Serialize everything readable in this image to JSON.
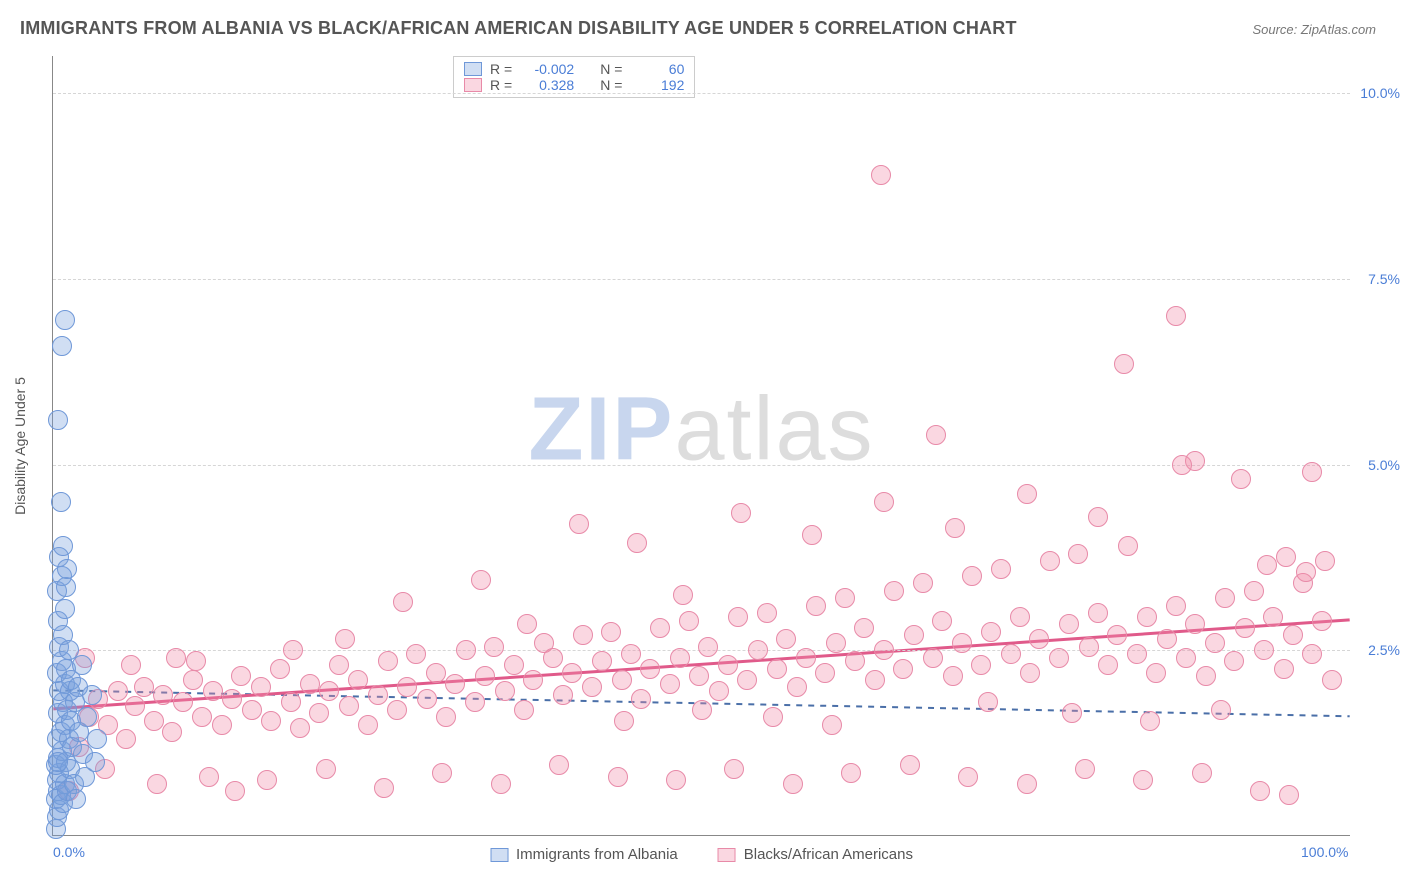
{
  "title": "IMMIGRANTS FROM ALBANIA VS BLACK/AFRICAN AMERICAN DISABILITY AGE UNDER 5 CORRELATION CHART",
  "source": "Source: ZipAtlas.com",
  "y_axis_title": "Disability Age Under 5",
  "watermark": {
    "part1": "ZIP",
    "part2": "atlas"
  },
  "colors": {
    "series1_fill": "rgba(120,160,220,0.35)",
    "series1_stroke": "#6f98d8",
    "series2_fill": "rgba(240,140,170,0.35)",
    "series2_stroke": "#e88aa8",
    "trend1": "#4a6fa8",
    "trend2": "#e05a8a",
    "tick_text": "#4a7dd6",
    "grid": "#d6d6d6",
    "axis": "#888888",
    "title_text": "#555555"
  },
  "xlim": [
    0,
    100
  ],
  "ylim": [
    0,
    10.5
  ],
  "x_ticks": [
    {
      "v": 0,
      "label": "0.0%"
    },
    {
      "v": 100,
      "label": "100.0%"
    }
  ],
  "y_ticks": [
    {
      "v": 2.5,
      "label": "2.5%"
    },
    {
      "v": 5.0,
      "label": "5.0%"
    },
    {
      "v": 7.5,
      "label": "7.5%"
    },
    {
      "v": 10.0,
      "label": "10.0%"
    }
  ],
  "legend_top": {
    "rows": [
      {
        "swatch": "series1",
        "r_label": "R =",
        "r_value": "-0.002",
        "n_label": "N =",
        "n_value": "60"
      },
      {
        "swatch": "series2",
        "r_label": "R =",
        "r_value": "0.328",
        "n_label": "N =",
        "n_value": "192"
      }
    ]
  },
  "legend_bottom": [
    {
      "swatch": "series1",
      "label": "Immigrants from Albania"
    },
    {
      "swatch": "series2",
      "label": "Blacks/African Americans"
    }
  ],
  "marker_radius": 10,
  "trendlines": {
    "series1": {
      "y_at_x0": 1.95,
      "y_at_x100": 1.6,
      "dash": "6,6",
      "width": 2
    },
    "series2": {
      "y_at_x0": 1.7,
      "y_at_x100": 2.9,
      "dash": "none",
      "width": 3
    }
  },
  "series1_points": [
    [
      0.2,
      0.1
    ],
    [
      0.3,
      0.25
    ],
    [
      0.5,
      0.35
    ],
    [
      0.2,
      0.5
    ],
    [
      0.4,
      0.6
    ],
    [
      0.6,
      0.55
    ],
    [
      0.8,
      0.45
    ],
    [
      0.3,
      0.75
    ],
    [
      0.5,
      0.85
    ],
    [
      0.9,
      0.7
    ],
    [
      1.1,
      0.6
    ],
    [
      0.2,
      0.95
    ],
    [
      0.4,
      1.05
    ],
    [
      0.7,
      1.15
    ],
    [
      1.0,
      1.0
    ],
    [
      1.3,
      0.9
    ],
    [
      0.3,
      1.3
    ],
    [
      0.6,
      1.4
    ],
    [
      0.9,
      1.5
    ],
    [
      1.2,
      1.3
    ],
    [
      1.5,
      1.2
    ],
    [
      0.4,
      1.65
    ],
    [
      0.8,
      1.8
    ],
    [
      1.1,
      1.7
    ],
    [
      1.4,
      1.55
    ],
    [
      0.5,
      1.95
    ],
    [
      0.9,
      2.05
    ],
    [
      1.3,
      1.95
    ],
    [
      1.7,
      1.8
    ],
    [
      0.3,
      2.2
    ],
    [
      0.7,
      2.35
    ],
    [
      1.0,
      2.25
    ],
    [
      1.4,
      2.1
    ],
    [
      0.5,
      2.55
    ],
    [
      0.8,
      2.7
    ],
    [
      1.2,
      2.5
    ],
    [
      0.4,
      2.9
    ],
    [
      0.9,
      3.05
    ],
    [
      0.3,
      3.3
    ],
    [
      0.7,
      3.5
    ],
    [
      1.0,
      3.35
    ],
    [
      0.5,
      3.75
    ],
    [
      0.8,
      3.9
    ],
    [
      1.1,
      3.6
    ],
    [
      0.4,
      1.0
    ],
    [
      1.6,
      0.7
    ],
    [
      2.0,
      1.4
    ],
    [
      2.3,
      1.1
    ],
    [
      2.6,
      1.6
    ],
    [
      3.0,
      1.9
    ],
    [
      3.4,
      1.3
    ],
    [
      1.9,
      2.0
    ],
    [
      2.2,
      2.3
    ],
    [
      0.6,
      4.5
    ],
    [
      0.4,
      5.6
    ],
    [
      0.7,
      6.6
    ],
    [
      0.9,
      6.95
    ],
    [
      1.8,
      0.5
    ],
    [
      2.5,
      0.8
    ],
    [
      3.2,
      1.0
    ]
  ],
  "series2_points": [
    [
      1.2,
      0.6
    ],
    [
      2.0,
      1.2
    ],
    [
      2.8,
      1.6
    ],
    [
      3.5,
      1.85
    ],
    [
      4.2,
      1.5
    ],
    [
      5.0,
      1.95
    ],
    [
      5.6,
      1.3
    ],
    [
      6.3,
      1.75
    ],
    [
      7.0,
      2.0
    ],
    [
      7.8,
      1.55
    ],
    [
      8.5,
      1.9
    ],
    [
      9.2,
      1.4
    ],
    [
      10.0,
      1.8
    ],
    [
      10.8,
      2.1
    ],
    [
      11.5,
      1.6
    ],
    [
      12.3,
      1.95
    ],
    [
      13.0,
      1.5
    ],
    [
      13.8,
      1.85
    ],
    [
      14.5,
      2.15
    ],
    [
      15.3,
      1.7
    ],
    [
      16.0,
      2.0
    ],
    [
      16.8,
      1.55
    ],
    [
      17.5,
      2.25
    ],
    [
      18.3,
      1.8
    ],
    [
      19.0,
      1.45
    ],
    [
      19.8,
      2.05
    ],
    [
      20.5,
      1.65
    ],
    [
      21.3,
      1.95
    ],
    [
      22.0,
      2.3
    ],
    [
      22.8,
      1.75
    ],
    [
      23.5,
      2.1
    ],
    [
      24.3,
      1.5
    ],
    [
      25.0,
      1.9
    ],
    [
      25.8,
      2.35
    ],
    [
      26.5,
      1.7
    ],
    [
      27.3,
      2.0
    ],
    [
      28.0,
      2.45
    ],
    [
      28.8,
      1.85
    ],
    [
      29.5,
      2.2
    ],
    [
      30.3,
      1.6
    ],
    [
      31.0,
      2.05
    ],
    [
      31.8,
      2.5
    ],
    [
      32.5,
      1.8
    ],
    [
      33.3,
      2.15
    ],
    [
      34.0,
      2.55
    ],
    [
      34.8,
      1.95
    ],
    [
      35.5,
      2.3
    ],
    [
      36.3,
      1.7
    ],
    [
      37.0,
      2.1
    ],
    [
      37.8,
      2.6
    ],
    [
      8.0,
      0.7
    ],
    [
      12.0,
      0.8
    ],
    [
      16.5,
      0.75
    ],
    [
      21.0,
      0.9
    ],
    [
      25.5,
      0.65
    ],
    [
      30.0,
      0.85
    ],
    [
      34.5,
      0.7
    ],
    [
      39.0,
      0.95
    ],
    [
      43.5,
      0.8
    ],
    [
      48.0,
      0.75
    ],
    [
      38.5,
      2.4
    ],
    [
      39.3,
      1.9
    ],
    [
      40.0,
      2.2
    ],
    [
      40.8,
      2.7
    ],
    [
      41.5,
      2.0
    ],
    [
      42.3,
      2.35
    ],
    [
      43.0,
      2.75
    ],
    [
      43.8,
      2.1
    ],
    [
      44.5,
      2.45
    ],
    [
      45.3,
      1.85
    ],
    [
      46.0,
      2.25
    ],
    [
      46.8,
      2.8
    ],
    [
      47.5,
      2.05
    ],
    [
      48.3,
      2.4
    ],
    [
      49.0,
      2.9
    ],
    [
      49.8,
      2.15
    ],
    [
      50.5,
      2.55
    ],
    [
      51.3,
      1.95
    ],
    [
      52.0,
      2.3
    ],
    [
      52.8,
      2.95
    ],
    [
      53.5,
      2.1
    ],
    [
      54.3,
      2.5
    ],
    [
      55.0,
      3.0
    ],
    [
      55.8,
      2.25
    ],
    [
      56.5,
      2.65
    ],
    [
      57.3,
      2.0
    ],
    [
      58.0,
      2.4
    ],
    [
      58.8,
      3.1
    ],
    [
      59.5,
      2.2
    ],
    [
      60.3,
      2.6
    ],
    [
      61.0,
      3.2
    ],
    [
      61.8,
      2.35
    ],
    [
      62.5,
      2.8
    ],
    [
      63.3,
      2.1
    ],
    [
      64.0,
      2.5
    ],
    [
      64.8,
      3.3
    ],
    [
      65.5,
      2.25
    ],
    [
      66.3,
      2.7
    ],
    [
      67.0,
      3.4
    ],
    [
      67.8,
      2.4
    ],
    [
      52.5,
      0.9
    ],
    [
      57.0,
      0.7
    ],
    [
      61.5,
      0.85
    ],
    [
      66.0,
      0.95
    ],
    [
      70.5,
      0.8
    ],
    [
      75.0,
      0.7
    ],
    [
      79.5,
      0.9
    ],
    [
      84.0,
      0.75
    ],
    [
      88.5,
      0.85
    ],
    [
      93.0,
      0.6
    ],
    [
      68.5,
      2.9
    ],
    [
      69.3,
      2.15
    ],
    [
      70.0,
      2.6
    ],
    [
      70.8,
      3.5
    ],
    [
      71.5,
      2.3
    ],
    [
      72.3,
      2.75
    ],
    [
      73.0,
      3.6
    ],
    [
      73.8,
      2.45
    ],
    [
      74.5,
      2.95
    ],
    [
      75.3,
      2.2
    ],
    [
      76.0,
      2.65
    ],
    [
      76.8,
      3.7
    ],
    [
      77.5,
      2.4
    ],
    [
      78.3,
      2.85
    ],
    [
      79.0,
      3.8
    ],
    [
      79.8,
      2.55
    ],
    [
      80.5,
      3.0
    ],
    [
      81.3,
      2.3
    ],
    [
      82.0,
      2.7
    ],
    [
      82.8,
      3.9
    ],
    [
      83.5,
      2.45
    ],
    [
      84.3,
      2.95
    ],
    [
      85.0,
      2.2
    ],
    [
      85.8,
      2.65
    ],
    [
      86.5,
      3.1
    ],
    [
      87.3,
      2.4
    ],
    [
      88.0,
      2.85
    ],
    [
      88.8,
      2.15
    ],
    [
      89.5,
      2.6
    ],
    [
      90.3,
      3.2
    ],
    [
      91.0,
      2.35
    ],
    [
      91.8,
      2.8
    ],
    [
      92.5,
      3.3
    ],
    [
      93.3,
      2.5
    ],
    [
      94.0,
      2.95
    ],
    [
      94.8,
      2.25
    ],
    [
      95.5,
      2.7
    ],
    [
      96.3,
      3.4
    ],
    [
      97.0,
      2.45
    ],
    [
      97.8,
      2.9
    ],
    [
      40.5,
      4.2
    ],
    [
      45.0,
      3.95
    ],
    [
      53.0,
      4.35
    ],
    [
      58.5,
      4.05
    ],
    [
      64.0,
      4.5
    ],
    [
      69.5,
      4.15
    ],
    [
      75.0,
      4.6
    ],
    [
      80.5,
      4.3
    ],
    [
      91.5,
      4.8
    ],
    [
      97.0,
      4.9
    ],
    [
      63.8,
      8.9
    ],
    [
      68.0,
      5.4
    ],
    [
      82.5,
      6.35
    ],
    [
      86.5,
      7.0
    ],
    [
      88.0,
      5.05
    ],
    [
      93.5,
      3.65
    ],
    [
      95.0,
      3.75
    ],
    [
      96.5,
      3.55
    ],
    [
      98.0,
      3.7
    ],
    [
      98.5,
      2.1
    ],
    [
      2.5,
      2.4
    ],
    [
      4.0,
      0.9
    ],
    [
      6.0,
      2.3
    ],
    [
      9.5,
      2.4
    ],
    [
      14.0,
      0.6
    ],
    [
      18.5,
      2.5
    ],
    [
      27.0,
      3.15
    ],
    [
      33.0,
      3.45
    ],
    [
      44.0,
      1.55
    ],
    [
      50.0,
      1.7
    ],
    [
      55.5,
      1.6
    ],
    [
      60.0,
      1.5
    ],
    [
      72.0,
      1.8
    ],
    [
      78.5,
      1.65
    ],
    [
      84.5,
      1.55
    ],
    [
      90.0,
      1.7
    ],
    [
      22.5,
      2.65
    ],
    [
      36.5,
      2.85
    ],
    [
      48.5,
      3.25
    ],
    [
      87.0,
      5.0
    ],
    [
      95.2,
      0.55
    ],
    [
      11.0,
      2.35
    ]
  ]
}
